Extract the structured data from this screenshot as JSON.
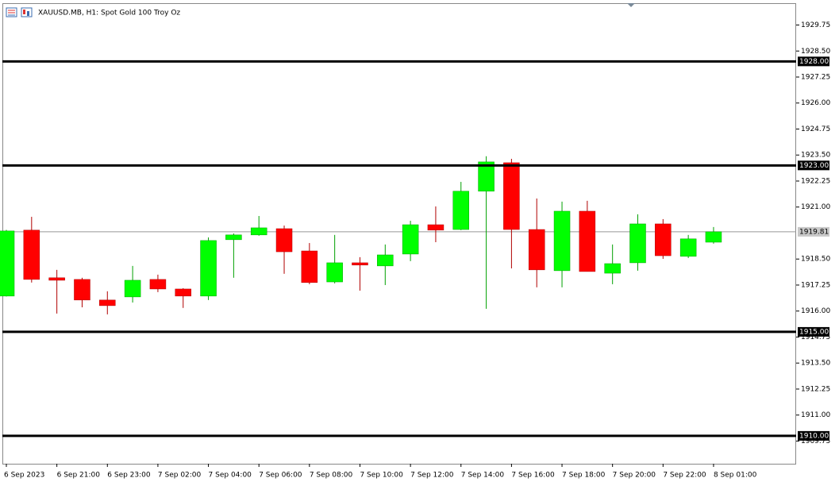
{
  "chart_data": {
    "type": "candlestick",
    "title": "XAUUSD.MB, H1:  Spot Gold 100 Troy Oz",
    "categories": [
      "6 Sep 2023",
      null,
      "6 Sep 21:00",
      null,
      "6 Sep 23:00",
      null,
      "7 Sep 02:00",
      null,
      "7 Sep 04:00",
      null,
      "7 Sep 06:00",
      null,
      "7 Sep 08:00",
      null,
      "7 Sep 10:00",
      null,
      "7 Sep 12:00",
      null,
      "7 Sep 14:00",
      null,
      "7 Sep 16:00",
      null,
      "7 Sep 18:00",
      null,
      "7 Sep 20:00",
      null,
      "7 Sep 22:00",
      null,
      "8 Sep 01:00"
    ],
    "open": [
      1916.72,
      1919.89,
      1917.6,
      1917.52,
      1916.53,
      1916.68,
      1917.52,
      1917.06,
      1916.72,
      1919.43,
      1919.66,
      1919.96,
      1918.89,
      1917.4,
      1918.32,
      1918.17,
      1918.74,
      1920.15,
      1919.92,
      1921.76,
      1923.13,
      1919.92,
      1917.94,
      1920.8,
      1917.82,
      1918.32,
      1920.19,
      1918.63,
      1919.31
    ],
    "high": [
      1919.9,
      1920.53,
      1917.98,
      1917.6,
      1916.95,
      1918.17,
      1917.75,
      1917.1,
      1919.54,
      1919.73,
      1920.57,
      1920.11,
      1919.27,
      1919.66,
      1918.59,
      1919.2,
      1920.34,
      1921.03,
      1922.21,
      1923.44,
      1923.32,
      1921.41,
      1921.26,
      1921.3,
      1919.2,
      1920.65,
      1920.42,
      1919.66,
      1920.04
    ],
    "low": [
      1916.7,
      1917.37,
      1915.88,
      1916.18,
      1915.84,
      1916.41,
      1916.91,
      1916.15,
      1916.53,
      1917.6,
      1919.62,
      1917.79,
      1917.29,
      1917.33,
      1916.98,
      1917.25,
      1918.4,
      1919.31,
      1919.89,
      1916.11,
      1918.05,
      1917.14,
      1917.14,
      1917.9,
      1917.29,
      1917.94,
      1918.51,
      1918.55,
      1919.24
    ],
    "close": [
      1919.85,
      1917.52,
      1917.48,
      1916.53,
      1916.26,
      1917.48,
      1917.06,
      1916.72,
      1919.39,
      1919.66,
      1920.0,
      1918.85,
      1917.37,
      1918.32,
      1918.21,
      1918.7,
      1920.15,
      1919.89,
      1921.76,
      1923.17,
      1919.92,
      1917.98,
      1920.8,
      1917.9,
      1918.28,
      1920.19,
      1918.66,
      1919.47,
      1919.81
    ],
    "up_color": "#00ff00",
    "down_color": "#ff0000",
    "ylim": [
      1908.66,
      1930.8
    ],
    "yticks": [
      {
        "value": 1929.75,
        "label": "1929.75"
      },
      {
        "value": 1928.5,
        "label": "1928.50"
      },
      {
        "value": 1927.25,
        "label": "1927.25"
      },
      {
        "value": 1926,
        "label": "1926.00"
      },
      {
        "value": 1924.75,
        "label": "1924.75"
      },
      {
        "value": 1923.5,
        "label": "1923.50"
      },
      {
        "value": 1922.25,
        "label": "1922.25"
      },
      {
        "value": 1921,
        "label": "1921.00"
      },
      {
        "value": 1918.5,
        "label": "1918.50"
      },
      {
        "value": 1917.25,
        "label": "1917.25"
      },
      {
        "value": 1916,
        "label": "1916.00"
      },
      {
        "value": 1914.75,
        "label": "1914.75"
      },
      {
        "value": 1913.5,
        "label": "1913.50"
      },
      {
        "value": 1912.25,
        "label": "1912.25"
      },
      {
        "value": 1911,
        "label": "1911.00"
      },
      {
        "value": 1909.75,
        "label": "1909.75"
      }
    ],
    "levels": [
      {
        "value": 1928,
        "label": "1928.00"
      },
      {
        "value": 1923,
        "label": "1923.00"
      },
      {
        "value": 1915,
        "label": "1915.00"
      },
      {
        "value": 1910,
        "label": "1910.00"
      }
    ],
    "price_line": {
      "value": 1919.81,
      "label": "1919.81"
    }
  }
}
